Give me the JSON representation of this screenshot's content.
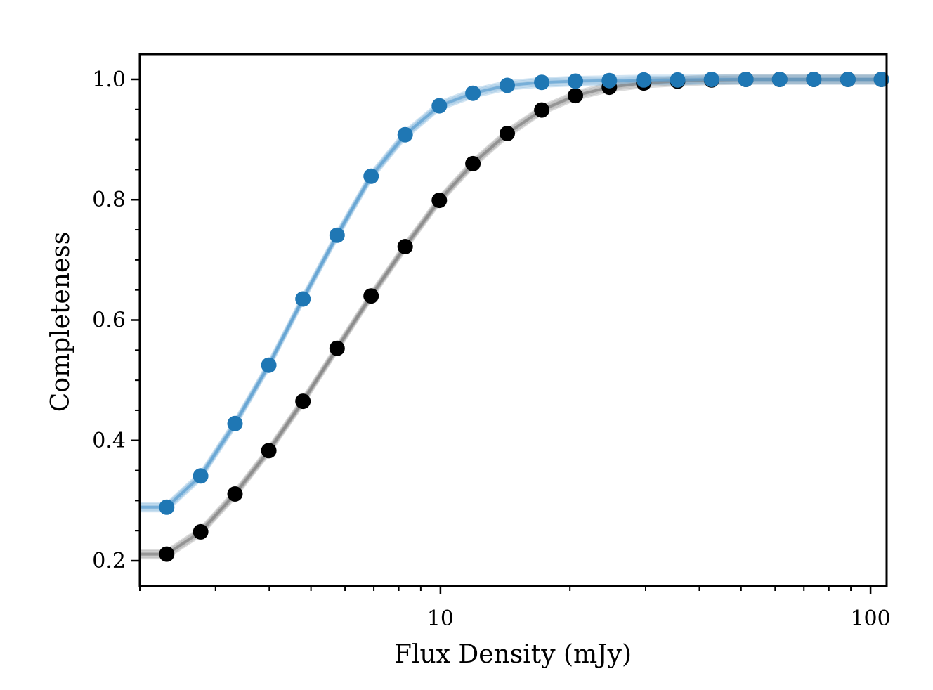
{
  "chart_data": {
    "type": "line",
    "title": "",
    "xlabel": "Flux Density (mJy)",
    "ylabel": "Completeness",
    "xscale": "log",
    "xlim": [
      2.0,
      109
    ],
    "ylim": [
      0.158,
      1.042
    ],
    "x_ticks": [
      10,
      100
    ],
    "x_tick_labels": [
      "10",
      "100"
    ],
    "y_ticks": [
      0.2,
      0.4,
      0.6,
      0.8,
      1.0
    ],
    "y_tick_labels": [
      "0.2",
      "0.4",
      "0.6",
      "0.8",
      "1.0"
    ],
    "grid": false,
    "legend": "none",
    "x": [
      2.31,
      2.77,
      3.33,
      3.99,
      4.79,
      5.75,
      6.9,
      8.28,
      9.94,
      11.9,
      14.3,
      17.2,
      20.6,
      24.7,
      29.7,
      35.6,
      42.7,
      51.3,
      61.5,
      73.8,
      88.6,
      106
    ],
    "series": [
      {
        "name": "blue",
        "color": "#1f77b4",
        "band_color": "#5b9fd0",
        "values": [
          0.289,
          0.341,
          0.428,
          0.525,
          0.635,
          0.741,
          0.839,
          0.908,
          0.956,
          0.977,
          0.99,
          0.995,
          0.997,
          0.998,
          0.999,
          0.999,
          1.0,
          1.0,
          1.0,
          1.0,
          1.0,
          1.0
        ]
      },
      {
        "name": "black",
        "color": "#000000",
        "band_color": "#808080",
        "values": [
          0.211,
          0.248,
          0.311,
          0.383,
          0.465,
          0.553,
          0.64,
          0.722,
          0.799,
          0.86,
          0.91,
          0.949,
          0.973,
          0.987,
          0.994,
          0.997,
          0.999,
          1.0,
          1.0,
          1.0,
          1.0,
          1.0
        ]
      }
    ]
  }
}
